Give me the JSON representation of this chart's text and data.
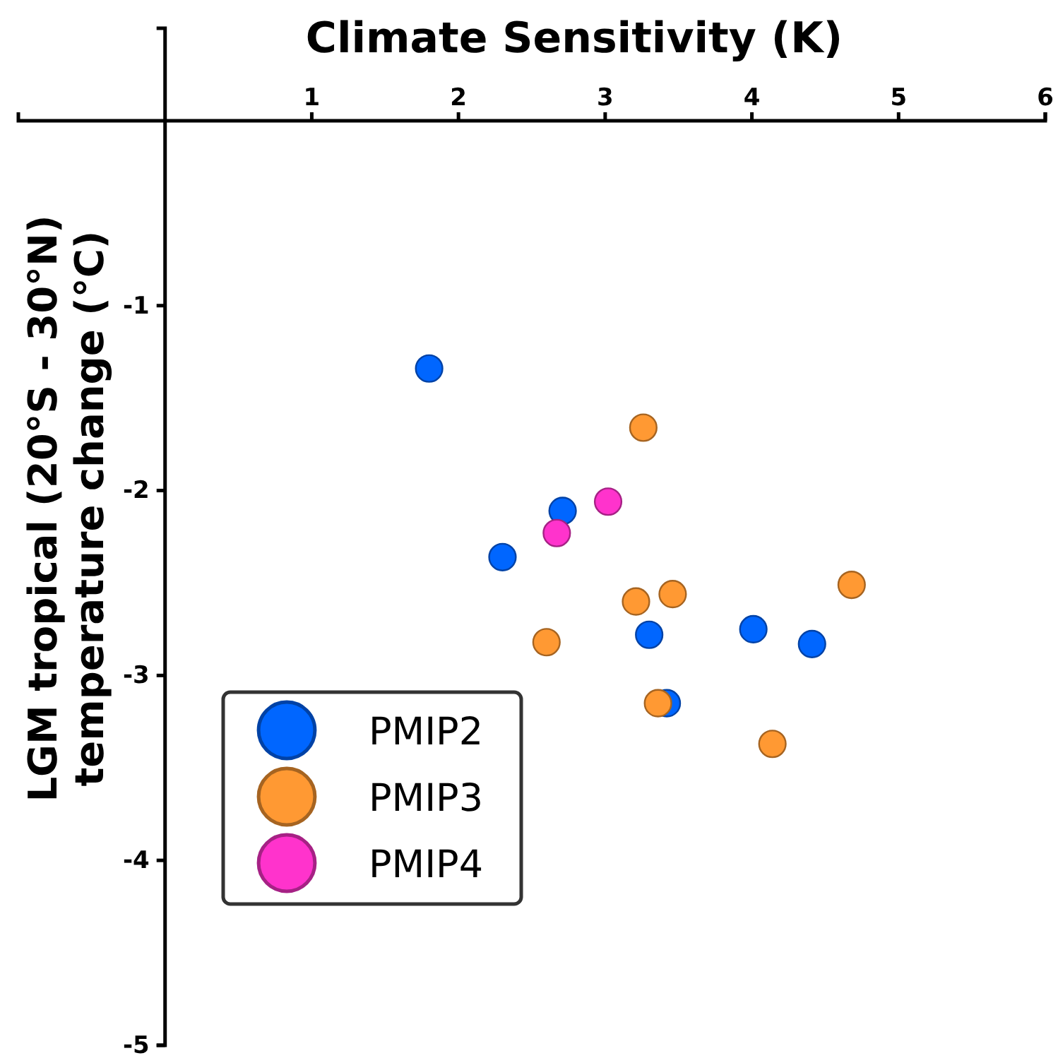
{
  "chart_data": {
    "type": "scatter",
    "title": "Climate Sensitivity (K)",
    "ylabel": "LGM tropical (20°S - 30°N)\ntemperature change (°C)",
    "xlim": [
      -1,
      6
    ],
    "ylim": [
      -5,
      0.5
    ],
    "xticks": [
      1,
      2,
      3,
      4,
      5,
      6
    ],
    "yticks": [
      -1,
      -2,
      -3,
      -4,
      -5
    ],
    "grid": false,
    "legend": "bottom left",
    "marker": "circle",
    "series": [
      {
        "name": "PMIP2",
        "color": "#0066ff",
        "x": [
          1.8,
          2.71,
          2.3,
          3.3,
          3.42,
          4.01,
          4.41
        ],
        "values": [
          -1.34,
          -2.11,
          -2.36,
          -2.78,
          -3.15,
          -2.75,
          -2.83
        ]
      },
      {
        "name": "PMIP3",
        "color": "#ff9933",
        "x": [
          3.26,
          3.21,
          3.46,
          2.6,
          3.36,
          4.14,
          4.68
        ],
        "values": [
          -1.66,
          -2.6,
          -2.56,
          -2.82,
          -3.15,
          -3.37,
          -2.51
        ]
      },
      {
        "name": "PMIP4",
        "color": "#ff33cc",
        "x": [
          3.02,
          2.67
        ],
        "values": [
          -2.06,
          -2.23
        ]
      }
    ]
  }
}
